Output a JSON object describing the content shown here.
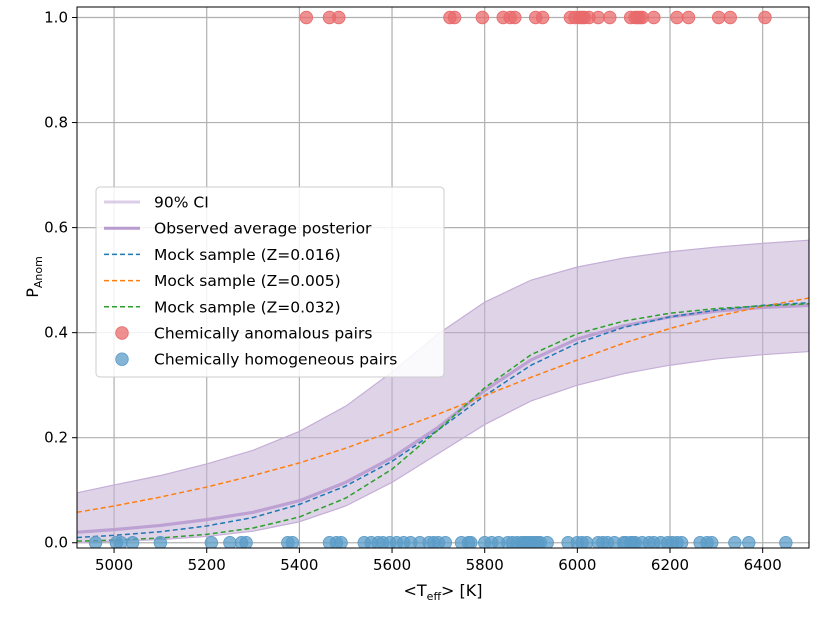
{
  "chart_data": {
    "type": "scatter",
    "xlabel": "<T_eff> [K]",
    "xlabel_parts": {
      "pre": "<T",
      "sub": "eff",
      "post": "> [K]"
    },
    "ylabel": "P_Anom",
    "ylabel_parts": {
      "main": "P",
      "sub": "Anom"
    },
    "xlim": [
      4920,
      6500
    ],
    "ylim": [
      -0.01,
      1.02
    ],
    "grid": true,
    "xticks": [
      5000,
      5200,
      5400,
      5600,
      5800,
      6000,
      6200,
      6400
    ],
    "yticks": [
      0.0,
      0.2,
      0.4,
      0.6,
      0.8,
      1.0
    ],
    "ytick_labels": [
      "0.0",
      "0.2",
      "0.4",
      "0.6",
      "0.8",
      "1.0"
    ],
    "colors": {
      "ci": "#c5aed6",
      "observed": "#b89bcf",
      "mock_016": "#1f77b4",
      "mock_005": "#ff7f0e",
      "mock_032": "#2ca02c",
      "anomalous": "#e8696b",
      "homogeneous": "#5b9cc8",
      "grid": "#b0b0b0"
    },
    "ci_band": {
      "x": [
        4920,
        5000,
        5100,
        5200,
        5300,
        5400,
        5500,
        5600,
        5700,
        5800,
        5900,
        6000,
        6100,
        6200,
        6300,
        6400,
        6500
      ],
      "lower": [
        0.0,
        0.003,
        0.006,
        0.012,
        0.022,
        0.04,
        0.07,
        0.115,
        0.17,
        0.225,
        0.27,
        0.3,
        0.322,
        0.338,
        0.35,
        0.358,
        0.364
      ],
      "upper": [
        0.095,
        0.11,
        0.128,
        0.15,
        0.176,
        0.212,
        0.26,
        0.325,
        0.398,
        0.458,
        0.5,
        0.525,
        0.542,
        0.554,
        0.563,
        0.57,
        0.576
      ]
    },
    "series": [
      {
        "name": "Observed average posterior",
        "style": "solid",
        "x": [
          4920,
          5000,
          5100,
          5200,
          5300,
          5400,
          5500,
          5600,
          5700,
          5800,
          5900,
          6000,
          6100,
          6200,
          6300,
          6400,
          6500
        ],
        "y": [
          0.02,
          0.025,
          0.033,
          0.044,
          0.058,
          0.08,
          0.115,
          0.162,
          0.22,
          0.29,
          0.348,
          0.388,
          0.413,
          0.43,
          0.441,
          0.448,
          0.452
        ]
      },
      {
        "name": "Mock sample (Z=0.016)",
        "style": "dashed",
        "x": [
          4920,
          5000,
          5100,
          5200,
          5300,
          5400,
          5500,
          5600,
          5700,
          5800,
          5900,
          6000,
          6100,
          6200,
          6300,
          6400,
          6500
        ],
        "y": [
          0.01,
          0.014,
          0.021,
          0.032,
          0.048,
          0.073,
          0.108,
          0.155,
          0.215,
          0.28,
          0.338,
          0.38,
          0.41,
          0.43,
          0.443,
          0.452,
          0.457
        ]
      },
      {
        "name": "Mock sample (Z=0.005)",
        "style": "dashed",
        "x": [
          4920,
          5000,
          5100,
          5200,
          5300,
          5400,
          5500,
          5600,
          5700,
          5800,
          5900,
          6000,
          6100,
          6200,
          6300,
          6400,
          6500
        ],
        "y": [
          0.058,
          0.07,
          0.087,
          0.106,
          0.128,
          0.152,
          0.18,
          0.212,
          0.245,
          0.28,
          0.315,
          0.348,
          0.38,
          0.408,
          0.431,
          0.45,
          0.466
        ]
      },
      {
        "name": "Mock sample (Z=0.032)",
        "style": "dashed",
        "x": [
          4920,
          5000,
          5100,
          5200,
          5300,
          5400,
          5500,
          5600,
          5700,
          5800,
          5900,
          6000,
          6100,
          6200,
          6300,
          6400,
          6500
        ],
        "y": [
          0.003,
          0.005,
          0.009,
          0.016,
          0.028,
          0.049,
          0.085,
          0.14,
          0.215,
          0.295,
          0.358,
          0.398,
          0.422,
          0.437,
          0.446,
          0.451,
          0.455
        ]
      }
    ],
    "scatter": [
      {
        "name": "Chemically anomalous pairs",
        "y": 1.0,
        "x": [
          5415,
          5465,
          5485,
          5725,
          5735,
          5795,
          5840,
          5855,
          5865,
          5910,
          5925,
          5985,
          5995,
          6005,
          6010,
          6015,
          6025,
          6045,
          6070,
          6115,
          6125,
          6130,
          6135,
          6140,
          6165,
          6215,
          6240,
          6305,
          6330,
          6405
        ]
      },
      {
        "name": "Chemically homogeneous pairs",
        "y": 0.0,
        "x": [
          4960,
          5005,
          5015,
          5040,
          5100,
          5210,
          5250,
          5275,
          5285,
          5375,
          5385,
          5465,
          5480,
          5490,
          5540,
          5555,
          5570,
          5580,
          5595,
          5610,
          5625,
          5640,
          5660,
          5680,
          5690,
          5700,
          5715,
          5750,
          5765,
          5770,
          5800,
          5815,
          5830,
          5850,
          5860,
          5870,
          5880,
          5885,
          5890,
          5895,
          5900,
          5905,
          5910,
          5915,
          5920,
          5935,
          5980,
          6000,
          6010,
          6020,
          6045,
          6055,
          6065,
          6080,
          6100,
          6105,
          6115,
          6120,
          6125,
          6140,
          6155,
          6165,
          6180,
          6195,
          6205,
          6215,
          6225,
          6265,
          6280,
          6290,
          6340,
          6370,
          6450
        ]
      }
    ],
    "legend": {
      "position": "center-left",
      "entries": [
        {
          "label": "90% CI",
          "kind": "band"
        },
        {
          "label": "Observed average posterior",
          "kind": "solid"
        },
        {
          "label": "Mock sample (Z=0.016)",
          "kind": "dashed"
        },
        {
          "label": "Mock sample (Z=0.005)",
          "kind": "dashed"
        },
        {
          "label": "Mock sample (Z=0.032)",
          "kind": "dashed"
        },
        {
          "label": "Chemically anomalous pairs",
          "kind": "marker"
        },
        {
          "label": "Chemically homogeneous pairs",
          "kind": "marker"
        }
      ]
    }
  }
}
